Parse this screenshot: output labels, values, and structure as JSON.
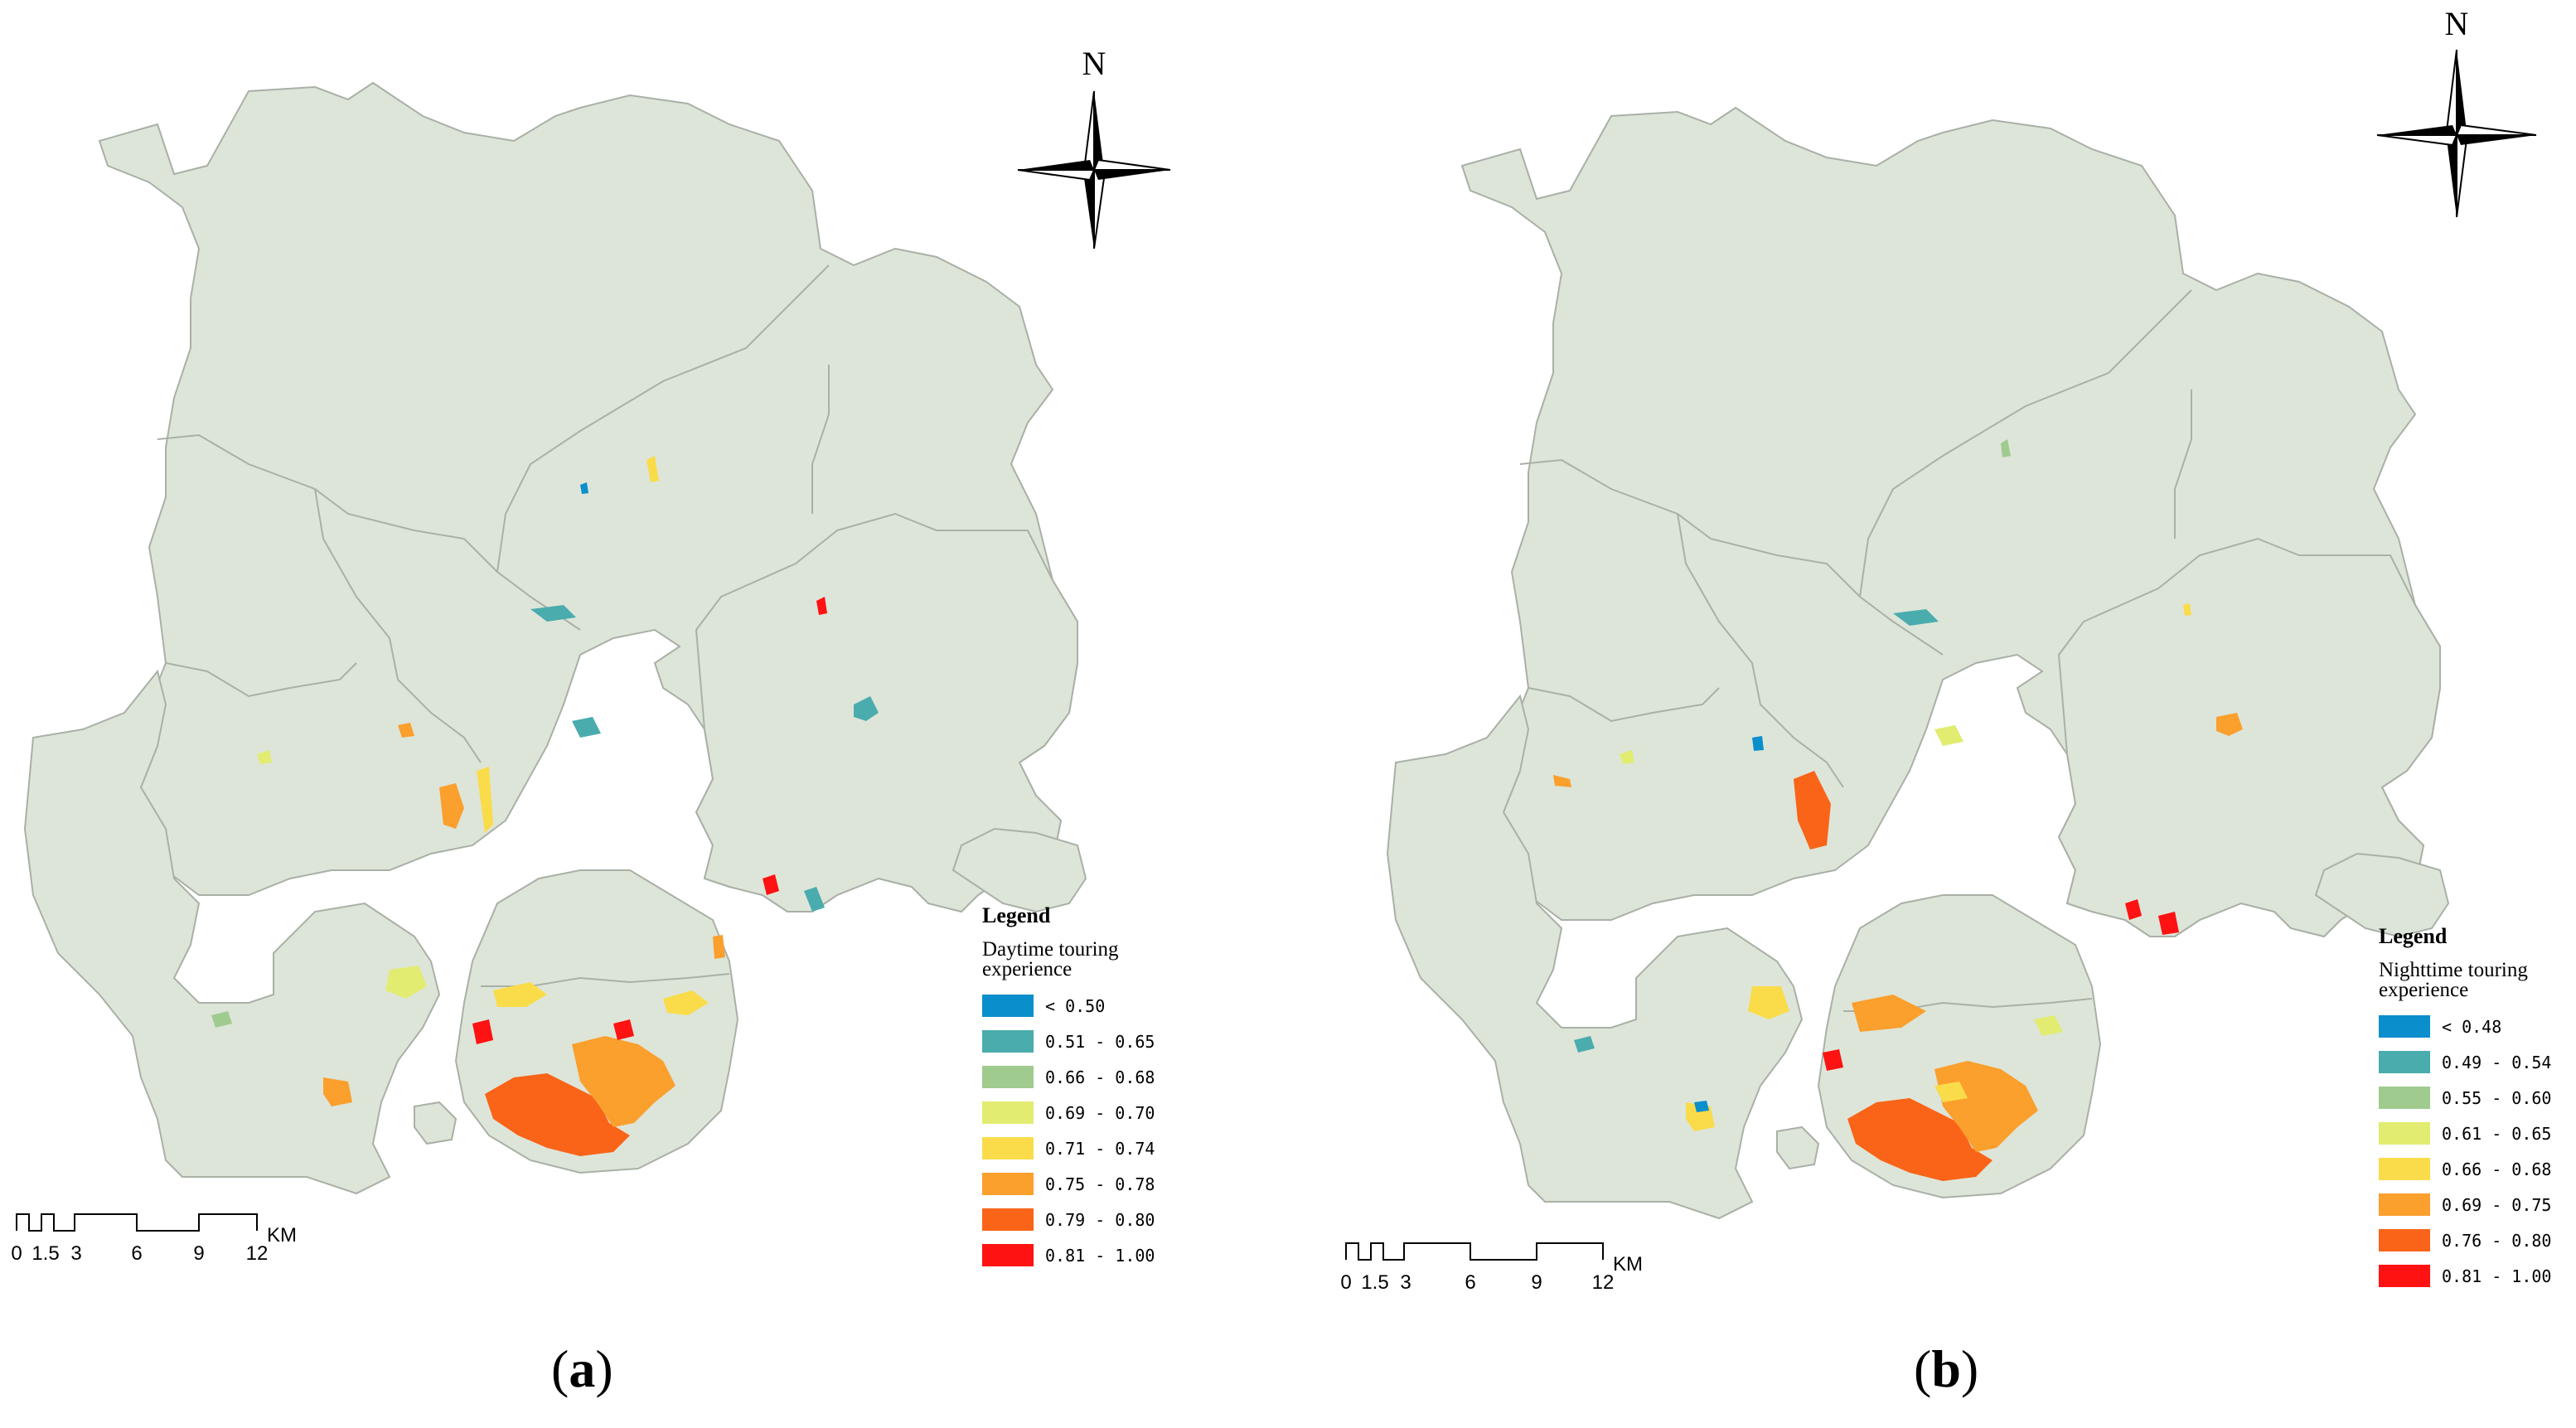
{
  "colors": {
    "land": "#dde5d9",
    "boundary": "#a9b0a6",
    "c1": "#0a8fcc",
    "c2": "#4aacad",
    "c3": "#9fcb8f",
    "c4": "#e1ec71",
    "c5": "#fadc4a",
    "c6": "#fb9f2d",
    "c7": "#fa6418",
    "c8": "#fe1212"
  },
  "panels": [
    {
      "label_letter": "a",
      "label_open": "(",
      "label_close": ")",
      "north": "N",
      "legend": {
        "title": "Legend",
        "subtitle": "Daytime touring experience",
        "classes": [
          {
            "label": "< 0.50",
            "color": "#0a8fcc"
          },
          {
            "label": "0.51 - 0.65",
            "color": "#4aacad"
          },
          {
            "label": "0.66 - 0.68",
            "color": "#9fcb8f"
          },
          {
            "label": "0.69 - 0.70",
            "color": "#e1ec71"
          },
          {
            "label": "0.71 - 0.74",
            "color": "#fadc4a"
          },
          {
            "label": "0.75 - 0.78",
            "color": "#fb9f2d"
          },
          {
            "label": "0.79 - 0.80",
            "color": "#fa6418"
          },
          {
            "label": "0.81 - 1.00",
            "color": "#fe1212"
          }
        ]
      },
      "scale": {
        "ticks": [
          "0",
          "1.5",
          "3",
          "6",
          "9",
          "12"
        ],
        "unit": "KM"
      }
    },
    {
      "label_letter": "b",
      "label_open": "(",
      "label_close": ")",
      "north": "N",
      "legend": {
        "title": "Legend",
        "subtitle": "Nighttime touring experience",
        "classes": [
          {
            "label": "< 0.48",
            "color": "#0a8fcc"
          },
          {
            "label": "0.49 - 0.54",
            "color": "#4aacad"
          },
          {
            "label": "0.55 - 0.60",
            "color": "#9fcb8f"
          },
          {
            "label": "0.61 - 0.65",
            "color": "#e1ec71"
          },
          {
            "label": "0.66 - 0.68",
            "color": "#fadc4a"
          },
          {
            "label": "0.69 - 0.75",
            "color": "#fb9f2d"
          },
          {
            "label": "0.76 - 0.80",
            "color": "#fa6418"
          },
          {
            "label": "0.81 - 1.00",
            "color": "#fe1212"
          }
        ]
      },
      "scale": {
        "ticks": [
          "0",
          "1.5",
          "3",
          "6",
          "9",
          "12"
        ],
        "unit": "KM"
      }
    }
  ]
}
